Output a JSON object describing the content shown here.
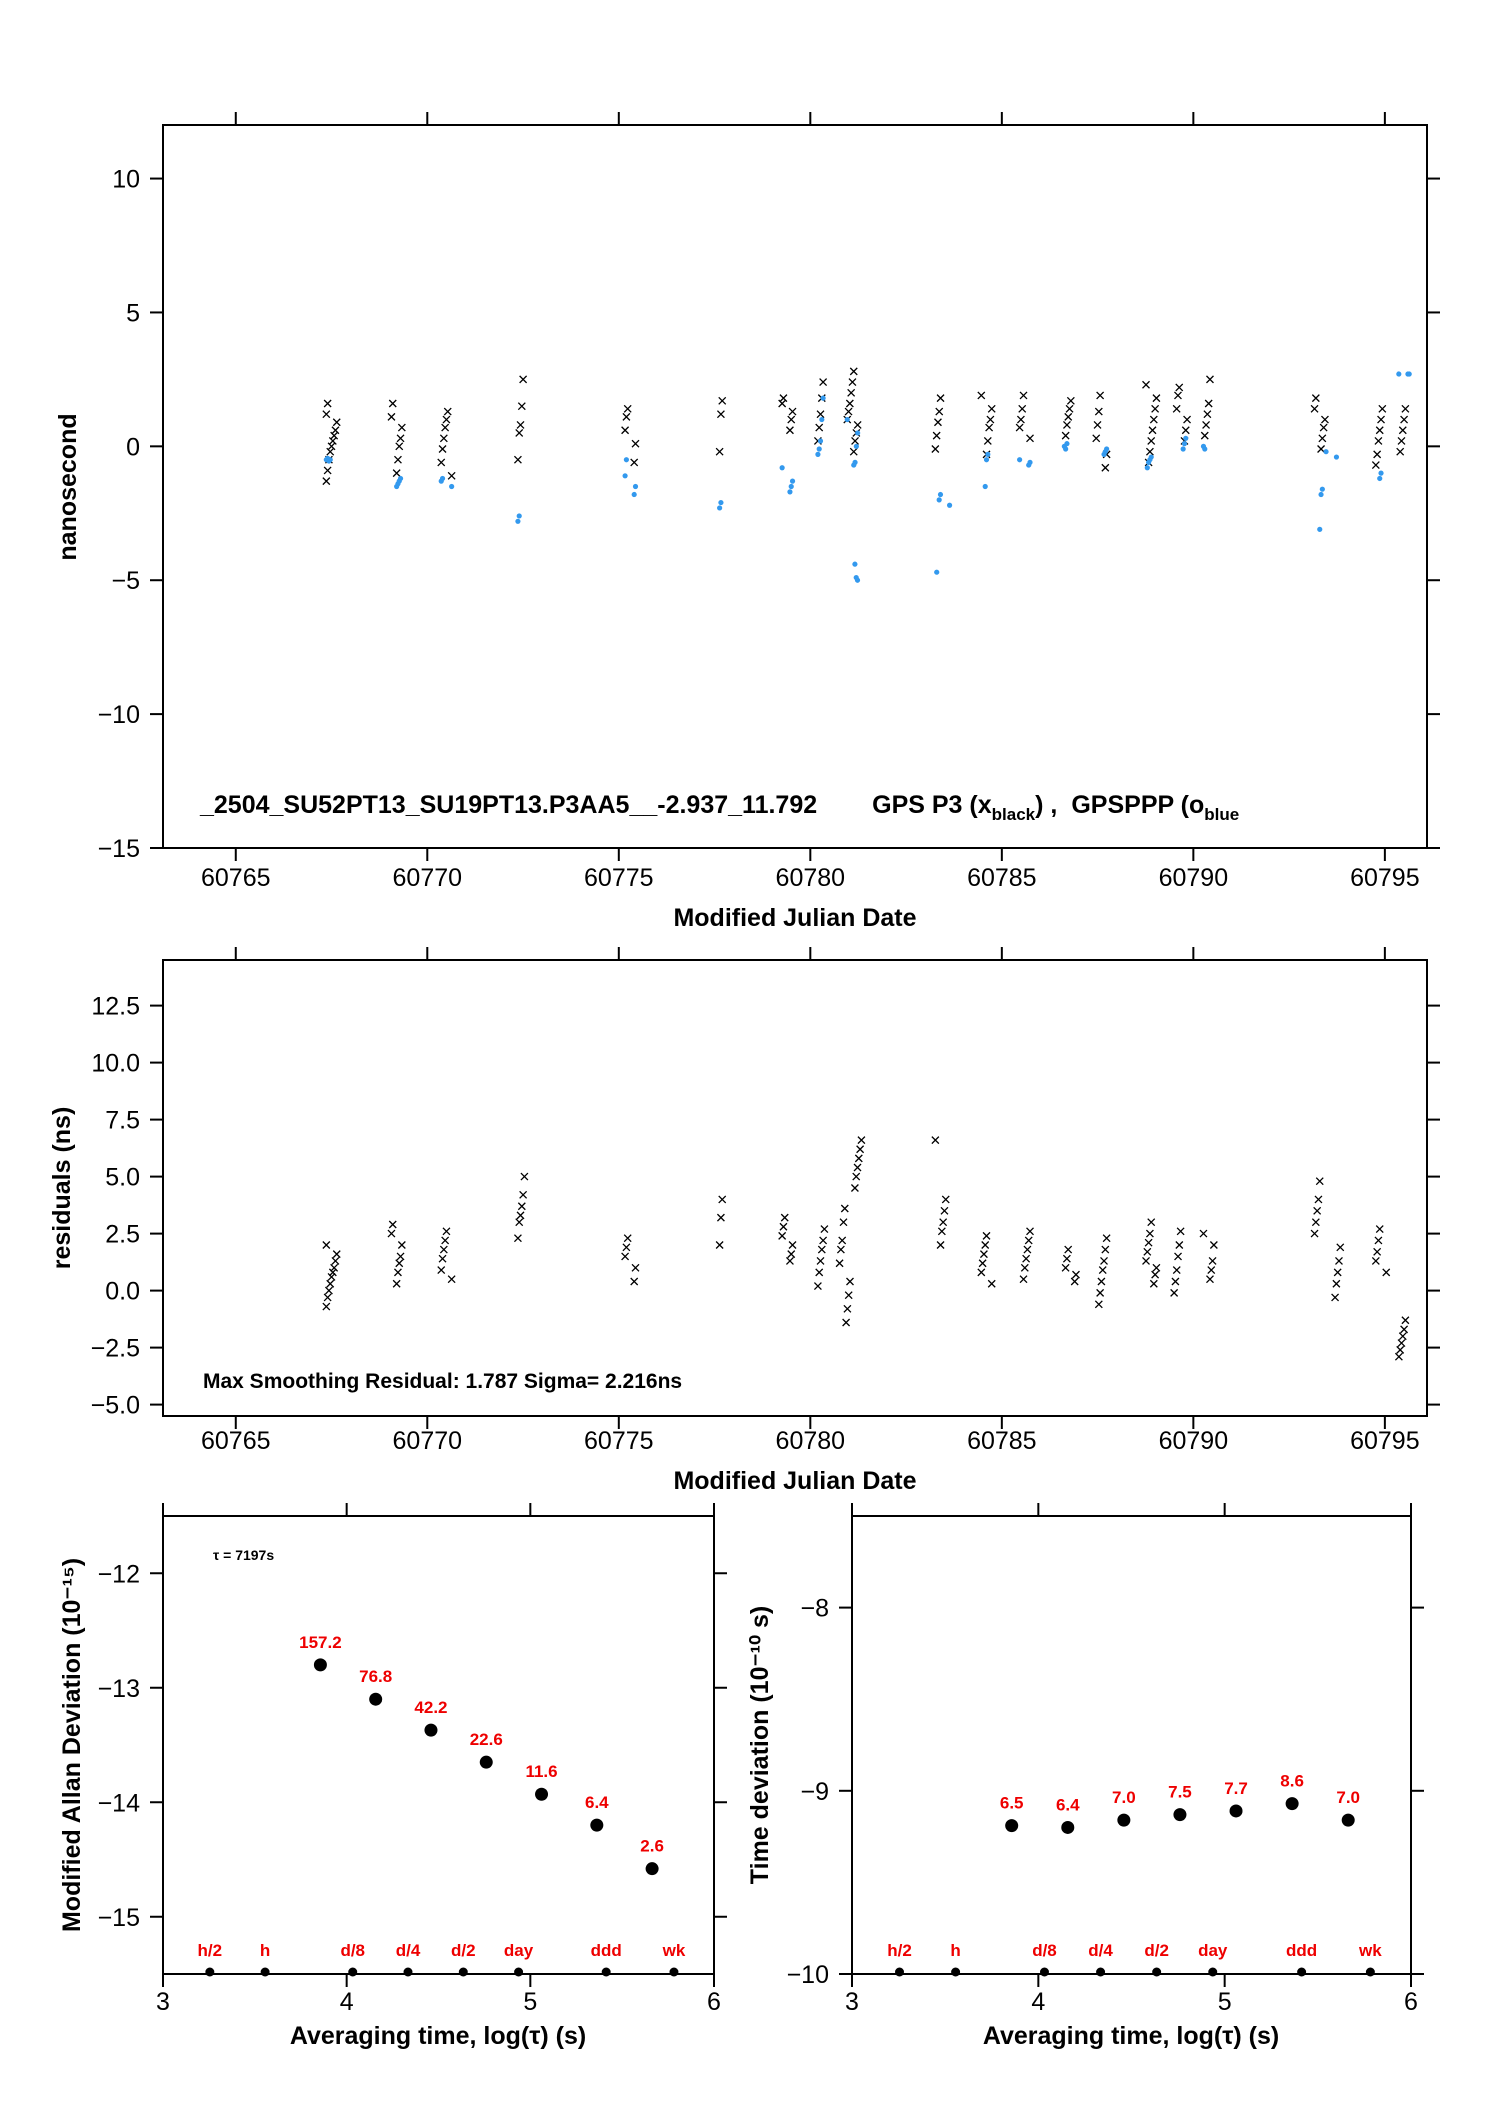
{
  "colors": {
    "black_series": "#000000",
    "blue_series": "#3399ee",
    "stability_labels": "#ee0000",
    "frame": "#000000"
  },
  "chart_data": [
    {
      "id": "top",
      "type": "scatter",
      "xlabel": "Modified Julian Date",
      "ylabel": "nanosecond",
      "xlim": [
        60763.1,
        60796.1
      ],
      "ylim": [
        -15,
        12
      ],
      "x_ticks": [
        60765,
        60770,
        60775,
        60780,
        60785,
        60790,
        60795
      ],
      "x_tick_labels": [
        "60765",
        "60770",
        "60775",
        "60780",
        "60785",
        "60790",
        "60795"
      ],
      "y_ticks": [
        10,
        5,
        0,
        -5,
        -10,
        -15
      ],
      "y_tick_labels": [
        "10",
        "5",
        "0",
        "−5",
        "−10",
        "−15"
      ],
      "annotation": "_2504_SU52PT13_SU19PT13.P3AA5__-2.937_11.792",
      "legend": {
        "black_prefix": "GPS P3 (x",
        "black_sub": "black",
        "black_suffix": ") ,",
        "blue_prefix": "GPSPPP (o",
        "blue_sub": "blue"
      },
      "series": [
        {
          "name": "GPS P3",
          "marker": "x",
          "clusters": [
            {
              "x": 60767.5,
              "y": [
                -1.3,
                -0.9,
                -0.5,
                -0.2,
                0.0,
                0.2,
                0.4,
                0.6,
                0.9,
                1.2,
                1.6
              ]
            },
            {
              "x": 60769.2,
              "y": [
                -1.0,
                -0.5,
                0.0,
                0.3,
                0.7,
                1.1,
                1.6
              ]
            },
            {
              "x": 60770.5,
              "y": [
                -1.1,
                -0.6,
                -0.1,
                0.3,
                0.7,
                1.0,
                1.3
              ]
            },
            {
              "x": 60772.4,
              "y": [
                -0.5,
                0.5,
                0.8,
                1.5,
                2.5
              ]
            },
            {
              "x": 60775.3,
              "y": [
                -0.6,
                0.1,
                0.6,
                1.1,
                1.4
              ]
            },
            {
              "x": 60777.7,
              "y": [
                -0.2,
                1.2,
                1.7
              ]
            },
            {
              "x": 60779.4,
              "y": [
                0.6,
                1.0,
                1.3,
                1.6,
                1.8
              ]
            },
            {
              "x": 60780.3,
              "y": [
                0.2,
                0.7,
                1.2,
                1.8,
                2.4
              ]
            },
            {
              "x": 60781.1,
              "y": [
                -0.2,
                0.2,
                0.5,
                0.8,
                1.0,
                1.3,
                1.6,
                2.0,
                2.4,
                2.8
              ]
            },
            {
              "x": 60783.4,
              "y": [
                -0.1,
                0.4,
                0.9,
                1.3,
                1.8
              ]
            },
            {
              "x": 60784.6,
              "y": [
                -0.3,
                0.2,
                0.7,
                1.0,
                1.4,
                1.9
              ]
            },
            {
              "x": 60785.6,
              "y": [
                0.3,
                0.7,
                1.0,
                1.4,
                1.9
              ]
            },
            {
              "x": 60786.7,
              "y": [
                0.4,
                0.8,
                1.1,
                1.4,
                1.7
              ]
            },
            {
              "x": 60787.6,
              "y": [
                -0.8,
                -0.3,
                0.3,
                0.8,
                1.3,
                1.9
              ]
            },
            {
              "x": 60788.9,
              "y": [
                -0.6,
                -0.2,
                0.2,
                0.6,
                1.0,
                1.4,
                1.8,
                2.3
              ]
            },
            {
              "x": 60789.7,
              "y": [
                0.2,
                0.6,
                1.0,
                1.4,
                1.9,
                2.2
              ]
            },
            {
              "x": 60790.4,
              "y": [
                0.4,
                0.8,
                1.2,
                1.6,
                2.5
              ]
            },
            {
              "x": 60793.3,
              "y": [
                -0.1,
                0.3,
                0.7,
                1.0,
                1.4,
                1.8
              ]
            },
            {
              "x": 60794.9,
              "y": [
                -0.7,
                -0.3,
                0.2,
                0.6,
                1.0,
                1.4
              ]
            },
            {
              "x": 60795.4,
              "y": [
                -0.2,
                0.2,
                0.6,
                1.0,
                1.4
              ]
            }
          ]
        },
        {
          "name": "GPSPPP",
          "marker": "o",
          "clusters": [
            {
              "x": 60767.5,
              "y": [
                -0.5,
                -0.45,
                -0.55,
                -0.5
              ]
            },
            {
              "x": 60769.2,
              "y": [
                -1.5,
                -1.4,
                -1.3,
                -1.2
              ]
            },
            {
              "x": 60770.5,
              "y": [
                -1.5,
                -1.3,
                -1.2
              ]
            },
            {
              "x": 60772.4,
              "y": [
                -2.8,
                -2.6
              ]
            },
            {
              "x": 60775.3,
              "y": [
                -1.8,
                -1.5,
                -1.1,
                -0.5
              ]
            },
            {
              "x": 60777.7,
              "y": [
                -2.3,
                -2.1
              ]
            },
            {
              "x": 60779.4,
              "y": [
                -1.7,
                -1.5,
                -1.3,
                -0.8
              ]
            },
            {
              "x": 60780.3,
              "y": [
                -0.3,
                -0.1,
                0.2,
                1.0,
                1.8
              ]
            },
            {
              "x": 60781.1,
              "y": [
                -0.7,
                -0.6,
                0.0,
                0.5,
                1.0
              ]
            },
            {
              "x": 60781.3,
              "y": [
                -4.4,
                -4.9,
                -5.0
              ]
            },
            {
              "x": 60783.3,
              "y": [
                -4.7
              ]
            },
            {
              "x": 60783.5,
              "y": [
                -2.2,
                -2.0,
                -1.8
              ]
            },
            {
              "x": 60784.6,
              "y": [
                -1.5,
                -0.5,
                -0.3
              ]
            },
            {
              "x": 60785.6,
              "y": [
                -0.7,
                -0.6,
                -0.5
              ]
            },
            {
              "x": 60786.7,
              "y": [
                0.0,
                -0.1,
                0.1
              ]
            },
            {
              "x": 60787.6,
              "y": [
                -0.3,
                -0.2,
                -0.1
              ]
            },
            {
              "x": 60788.9,
              "y": [
                -0.8,
                -0.6,
                -0.5,
                -0.4
              ]
            },
            {
              "x": 60789.7,
              "y": [
                -0.1,
                0.1,
                0.3
              ]
            },
            {
              "x": 60790.4,
              "y": [
                0.0,
                -0.1
              ]
            },
            {
              "x": 60793.3,
              "y": [
                -3.1,
                -1.8,
                -1.6
              ]
            },
            {
              "x": 60793.6,
              "y": [
                -0.4,
                -0.2
              ]
            },
            {
              "x": 60794.9,
              "y": [
                -1.2,
                -1.0
              ]
            },
            {
              "x": 60795.5,
              "y": [
                2.7,
                2.7,
                2.7
              ]
            }
          ]
        }
      ]
    },
    {
      "id": "residuals",
      "type": "scatter",
      "xlabel": "Modified Julian Date",
      "ylabel": "residuals (ns)",
      "xlim": [
        60763.1,
        60796.1
      ],
      "ylim": [
        -5.5,
        14.5
      ],
      "x_ticks": [
        60765,
        60770,
        60775,
        60780,
        60785,
        60790,
        60795
      ],
      "x_tick_labels": [
        "60765",
        "60770",
        "60775",
        "60780",
        "60785",
        "60790",
        "60795"
      ],
      "y_ticks": [
        12.5,
        10.0,
        7.5,
        5.0,
        2.5,
        0.0,
        -2.5,
        -5.0
      ],
      "y_tick_labels": [
        "12.5",
        "10.0",
        "7.5",
        "5.0",
        "2.5",
        "0.0",
        "−2.5",
        "−5.0"
      ],
      "annotation": "Max Smoothing Residual: 1.787  Sigma= 2.216ns",
      "series": [
        {
          "name": "residuals",
          "marker": "x",
          "clusters": [
            {
              "x": 60767.5,
              "y": [
                -0.7,
                -0.3,
                0.0,
                0.3,
                0.6,
                0.8,
                1.0,
                1.3,
                1.6,
                2.0
              ]
            },
            {
              "x": 60769.2,
              "y": [
                0.3,
                0.8,
                1.2,
                1.5,
                2.0,
                2.5,
                2.9
              ]
            },
            {
              "x": 60770.5,
              "y": [
                0.5,
                0.9,
                1.4,
                1.8,
                2.2,
                2.6
              ]
            },
            {
              "x": 60772.4,
              "y": [
                2.3,
                3.0,
                3.3,
                3.7,
                4.2,
                5.0
              ]
            },
            {
              "x": 60775.3,
              "y": [
                0.4,
                1.0,
                1.5,
                1.9,
                2.3
              ]
            },
            {
              "x": 60777.7,
              "y": [
                2.0,
                3.2,
                4.0
              ]
            },
            {
              "x": 60779.4,
              "y": [
                1.3,
                1.6,
                2.0,
                2.4,
                2.8,
                3.2
              ]
            },
            {
              "x": 60780.3,
              "y": [
                0.2,
                0.8,
                1.3,
                1.8,
                2.2,
                2.7
              ]
            },
            {
              "x": 60780.9,
              "y": [
                -1.4,
                -0.8,
                -0.2,
                0.4,
                1.2,
                1.8,
                2.2,
                3.0,
                3.6
              ]
            },
            {
              "x": 60781.3,
              "y": [
                4.5,
                5.0,
                5.4,
                5.8,
                6.2,
                6.6
              ]
            },
            {
              "x": 60783.4,
              "y": [
                2.0,
                2.6,
                3.0,
                3.5,
                4.0,
                6.6
              ]
            },
            {
              "x": 60784.6,
              "y": [
                0.3,
                0.8,
                1.2,
                1.6,
                2.0,
                2.4
              ]
            },
            {
              "x": 60785.6,
              "y": [
                0.5,
                1.0,
                1.4,
                1.8,
                2.2,
                2.6
              ]
            },
            {
              "x": 60786.8,
              "y": [
                0.4,
                0.7,
                1.0,
                1.4,
                1.8
              ]
            },
            {
              "x": 60787.6,
              "y": [
                -0.6,
                -0.1,
                0.4,
                0.9,
                1.3,
                1.8,
                2.3
              ]
            },
            {
              "x": 60788.9,
              "y": [
                0.3,
                0.7,
                1.0,
                1.3,
                1.7,
                2.1,
                2.5,
                3.0
              ]
            },
            {
              "x": 60789.6,
              "y": [
                -0.1,
                0.4,
                0.9,
                1.5,
                2.0,
                2.6
              ]
            },
            {
              "x": 60790.4,
              "y": [
                0.5,
                0.9,
                1.3,
                2.0,
                2.5
              ]
            },
            {
              "x": 60793.3,
              "y": [
                2.5,
                3.0,
                3.5,
                4.0,
                4.8
              ]
            },
            {
              "x": 60793.7,
              "y": [
                -0.3,
                0.3,
                0.8,
                1.3,
                1.9
              ]
            },
            {
              "x": 60794.9,
              "y": [
                0.8,
                1.3,
                1.7,
                2.2,
                2.7
              ]
            },
            {
              "x": 60795.4,
              "y": [
                -2.9,
                -2.6,
                -2.3,
                -2.0,
                -1.7,
                -1.3
              ]
            }
          ]
        }
      ]
    },
    {
      "id": "mdev",
      "type": "scatter",
      "xlabel": "Averaging time, log(τ) (s)",
      "ylabel": "Modified Allan Deviation (10⁻¹⁵)",
      "xlim": [
        3,
        6
      ],
      "ylim": [
        -15.5,
        -11.5
      ],
      "x_ticks": [
        3,
        4,
        5,
        6
      ],
      "x_tick_labels": [
        "3",
        "4",
        "5",
        "6"
      ],
      "y_ticks": [
        -12,
        -13,
        -14,
        -15
      ],
      "y_tick_labels": [
        "−12",
        "−13",
        "−14",
        "−15"
      ],
      "annotation": "τ = 7197s",
      "points": [
        {
          "x": 3.857,
          "y": -12.8,
          "label": "157.2"
        },
        {
          "x": 4.158,
          "y": -13.1,
          "label": "76.8"
        },
        {
          "x": 4.459,
          "y": -13.37,
          "label": "42.2"
        },
        {
          "x": 4.76,
          "y": -13.65,
          "label": "22.6"
        },
        {
          "x": 5.061,
          "y": -13.93,
          "label": "11.6"
        },
        {
          "x": 5.362,
          "y": -14.2,
          "label": "6.4"
        },
        {
          "x": 5.663,
          "y": -14.58,
          "label": "2.6"
        }
      ],
      "markers": [
        {
          "x": 3.255,
          "label": "h/2"
        },
        {
          "x": 3.556,
          "label": "h"
        },
        {
          "x": 4.033,
          "label": "d/8"
        },
        {
          "x": 4.334,
          "label": "d/4"
        },
        {
          "x": 4.635,
          "label": "d/2"
        },
        {
          "x": 4.936,
          "label": "day"
        },
        {
          "x": 5.413,
          "label": "ddd"
        },
        {
          "x": 5.782,
          "label": "wk"
        }
      ]
    },
    {
      "id": "tdev",
      "type": "scatter",
      "xlabel": "Averaging time, log(τ) (s)",
      "ylabel": "Time deviation (10⁻¹⁰ s)",
      "xlim": [
        3,
        6
      ],
      "ylim": [
        -10,
        -7.5
      ],
      "x_ticks": [
        3,
        4,
        5,
        6
      ],
      "x_tick_labels": [
        "3",
        "4",
        "5",
        "6"
      ],
      "y_ticks": [
        -8,
        -9,
        -10
      ],
      "y_tick_labels": [
        "−8",
        "−9",
        "−10"
      ],
      "points": [
        {
          "x": 3.857,
          "y": -9.19,
          "label": "6.5"
        },
        {
          "x": 4.158,
          "y": -9.2,
          "label": "6.4"
        },
        {
          "x": 4.459,
          "y": -9.16,
          "label": "7.0"
        },
        {
          "x": 4.76,
          "y": -9.13,
          "label": "7.5"
        },
        {
          "x": 5.061,
          "y": -9.11,
          "label": "7.7"
        },
        {
          "x": 5.362,
          "y": -9.07,
          "label": "8.6"
        },
        {
          "x": 5.663,
          "y": -9.16,
          "label": "7.0"
        }
      ],
      "markers": [
        {
          "x": 3.255,
          "label": "h/2"
        },
        {
          "x": 3.556,
          "label": "h"
        },
        {
          "x": 4.033,
          "label": "d/8"
        },
        {
          "x": 4.334,
          "label": "d/4"
        },
        {
          "x": 4.635,
          "label": "d/2"
        },
        {
          "x": 4.936,
          "label": "day"
        },
        {
          "x": 5.413,
          "label": "ddd"
        },
        {
          "x": 5.782,
          "label": "wk"
        }
      ]
    }
  ]
}
